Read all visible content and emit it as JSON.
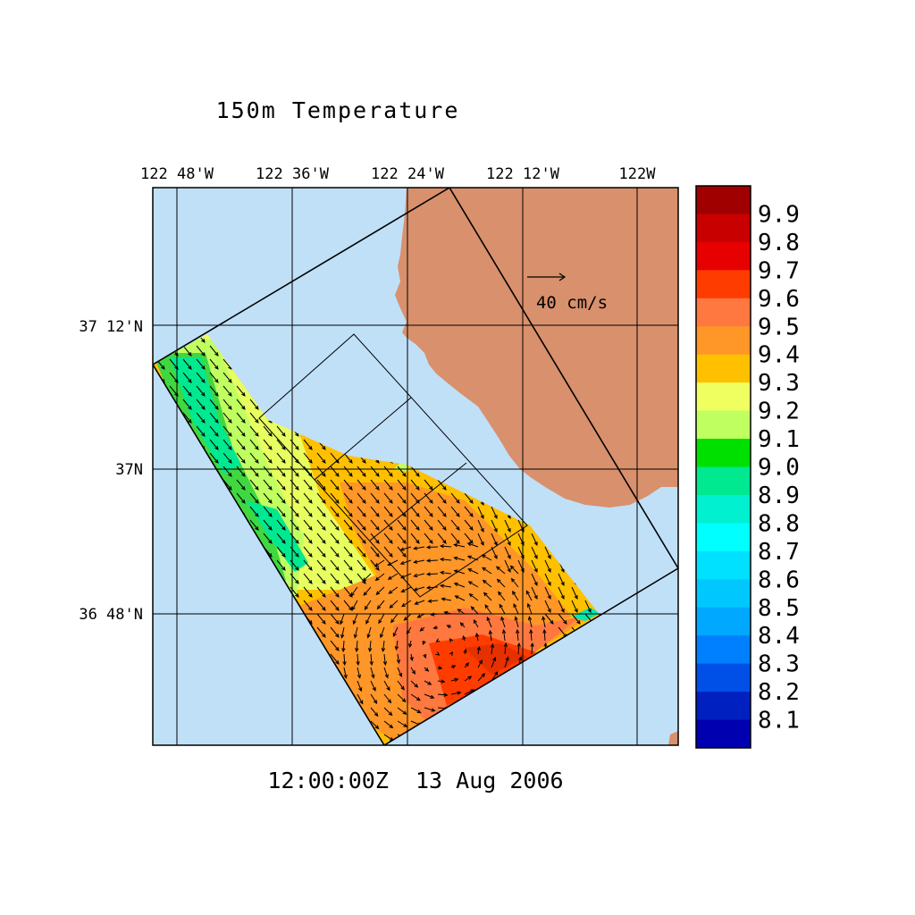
{
  "title": "150m Temperature",
  "timestamp": "12:00:00Z  13 Aug 2006",
  "longitude_labels": [
    "122 48'W",
    "122 36'W",
    "122 24'W",
    "122 12'W",
    "122W"
  ],
  "latitude_labels": [
    "37 12'N",
    "37N",
    "36 48'N"
  ],
  "vector_scale_label": "40 cm/s",
  "colorbar": {
    "labels": [
      "9.9",
      "9.8",
      "9.7",
      "9.6",
      "9.5",
      "9.4",
      "9.3",
      "9.2",
      "9.1",
      "9.0",
      "8.9",
      "8.8",
      "8.7",
      "8.6",
      "8.5",
      "8.4",
      "8.3",
      "8.2",
      "8.1"
    ],
    "colors": [
      "#a00000",
      "#c80000",
      "#e60000",
      "#ff3c00",
      "#ff7840",
      "#ff9628",
      "#ffc000",
      "#f0ff60",
      "#c0ff60",
      "#00e000",
      "#00e890",
      "#00f0d0",
      "#00ffff",
      "#00e0ff",
      "#00c8ff",
      "#00a8ff",
      "#0080ff",
      "#0050e8",
      "#0020c0",
      "#0000b0"
    ]
  },
  "colors": {
    "ocean": "#c0e0f8",
    "land": "#d9906c",
    "frame": "#000000"
  }
}
